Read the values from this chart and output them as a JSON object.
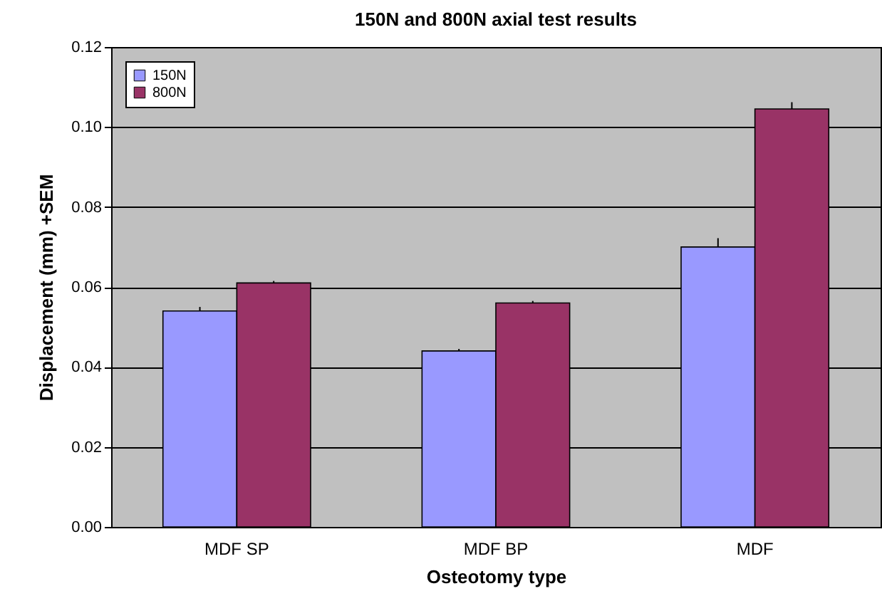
{
  "chart_data": {
    "type": "bar",
    "title": "150N and 800N axial test results",
    "xlabel": "Osteotomy type",
    "ylabel": "Displacement (mm) +SEM",
    "categories": [
      "MDF SP",
      "MDF BP",
      "MDF"
    ],
    "series": [
      {
        "name": "150N",
        "color": "#9999ff",
        "values": [
          0.054,
          0.044,
          0.07
        ],
        "errors": [
          [
            0.054,
            0.055
          ],
          [
            0.044,
            0.0445
          ],
          [
            0.07,
            0.0722
          ]
        ]
      },
      {
        "name": "800N",
        "color": "#993366",
        "values": [
          0.061,
          0.056,
          0.1045
        ],
        "errors": [
          [
            0.061,
            0.0615
          ],
          [
            0.056,
            0.0565
          ],
          [
            0.1045,
            0.1062
          ]
        ]
      }
    ],
    "ylim": [
      0,
      0.12
    ],
    "yticks": [
      {
        "value": 0,
        "label": "0.00"
      },
      0.02,
      0.04,
      0.06,
      0.08,
      {
        "value": 0.1,
        "label": "0.10"
      },
      0.12
    ],
    "grid": "y",
    "legend": "top left"
  }
}
